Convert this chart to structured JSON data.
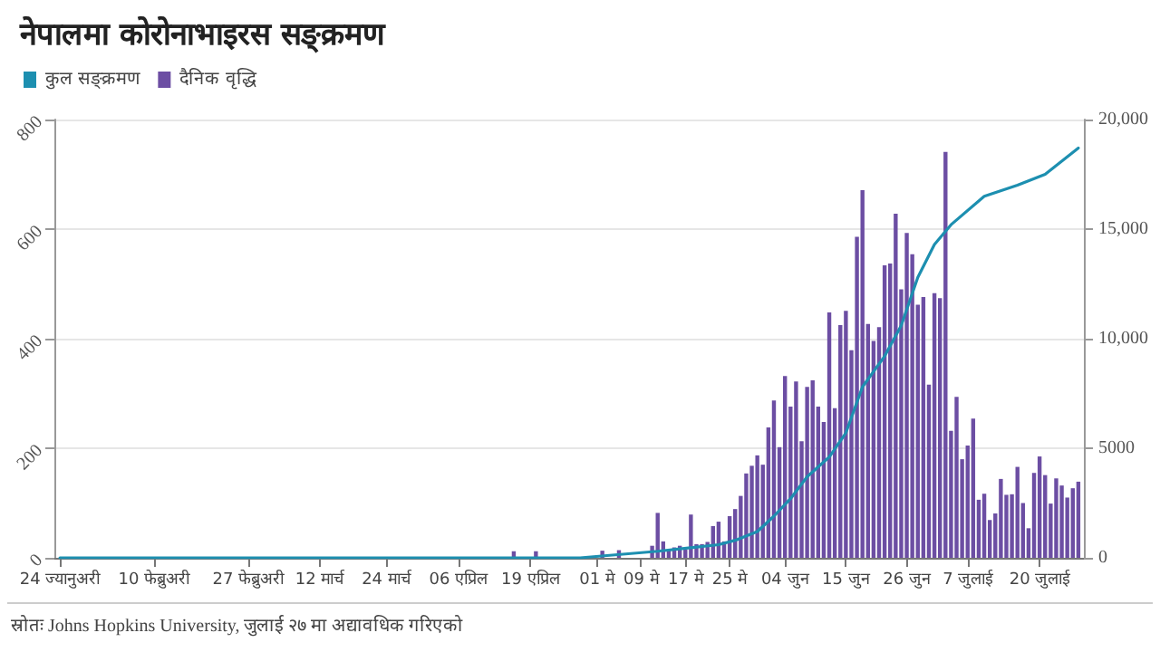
{
  "chart_data": {
    "type": "bar",
    "title": "नेपालमा कोरोनाभाइरस सङ्क्रमण",
    "annotations": [
      "स्रोतः Johns Hopkins University, जुलाई २७ मा अद्यावधिक गरिएको"
    ],
    "legend": "top left",
    "grid": "y",
    "marker": "none",
    "line_style": "solid",
    "xlim": [
      "--01-23",
      "--07-28"
    ],
    "xticks": [
      {
        "value": "--01-24",
        "label": "24 ज्यानुअरी"
      },
      {
        "value": "--02-10",
        "label": "10 फेब्रुअरी"
      },
      {
        "value": "--02-27",
        "label": "27 फेब्रुअरी"
      },
      {
        "value": "--03-12",
        "label": "12 मार्च"
      },
      {
        "value": "--03-24",
        "label": "24 मार्च"
      },
      {
        "value": "--04-06",
        "label": "06 एप्रिल"
      },
      {
        "value": "--04-19",
        "label": "19 एप्रिल"
      },
      {
        "value": "--05-01",
        "label": "01 मे"
      },
      {
        "value": "--05-09",
        "label": "09 मे"
      },
      {
        "value": "--05-17",
        "label": "17 मे"
      },
      {
        "value": "--05-25",
        "label": "25 मे"
      },
      {
        "value": "--06-04",
        "label": "04 जुन"
      },
      {
        "value": "--06-15",
        "label": "15 जुन"
      },
      {
        "value": "--06-26",
        "label": "26 जुन"
      },
      {
        "value": "--07-07",
        "label": "7 जुलाई"
      },
      {
        "value": "--07-20",
        "label": "20 जुलाई"
      }
    ],
    "ylim": [
      0,
      800
    ],
    "yticks": [
      0,
      200,
      400,
      600,
      800
    ],
    "y2lim": [
      0,
      20000
    ],
    "y2ticks": [
      0,
      {
        "value": 5000,
        "label": "5000"
      },
      {
        "value": 10000,
        "label": "10,000"
      },
      {
        "value": 15000,
        "label": "15,000"
      },
      {
        "value": 20000,
        "label": "20,000"
      }
    ],
    "series": [
      {
        "name": "कुल सङ्क्रमण",
        "type": "line",
        "axis": "y2",
        "color": "#1d8fb0",
        "x": [
          "--01-24",
          "--03-24",
          "--04-13",
          "--04-28",
          "--05-12",
          "--05-23",
          "--05-26",
          "--05-30",
          "--06-02",
          "--06-05",
          "--06-08",
          "--06-12",
          "--06-15",
          "--06-18",
          "--06-22",
          "--06-25",
          "--06-28",
          "--07-01",
          "--07-04",
          "--07-10",
          "--07-16",
          "--07-21",
          "--07-27"
        ],
        "values": [
          0,
          0,
          0,
          0,
          300,
          600,
          800,
          1200,
          1900,
          2700,
          3700,
          4600,
          5700,
          7800,
          9200,
          10600,
          12800,
          14300,
          15200,
          16500,
          17000,
          17500,
          18700
        ]
      },
      {
        "name": "दैनिक वृद्धि",
        "color": "#6c4ea3",
        "x": [
          "--04-16",
          "--04-17",
          "--04-18",
          "--04-19",
          "--04-20",
          "--04-21",
          "--04-22",
          "--04-23",
          "--04-24",
          "--04-25",
          "--04-26",
          "--04-27",
          "--04-28",
          "--04-29",
          "--04-30",
          "--05-01",
          "--05-02",
          "--05-03",
          "--05-04",
          "--05-05",
          "--05-06",
          "--05-07",
          "--05-08",
          "--05-09",
          "--05-10",
          "--05-11",
          "--05-12",
          "--05-13",
          "--05-14",
          "--05-15",
          "--05-16",
          "--05-17",
          "--05-18",
          "--05-19",
          "--05-20",
          "--05-21",
          "--05-22",
          "--05-23",
          "--05-24",
          "--05-25",
          "--05-26",
          "--05-27",
          "--05-28",
          "--05-29",
          "--05-30",
          "--05-31",
          "--06-01",
          "--06-02",
          "--06-03",
          "--06-04",
          "--06-05",
          "--06-06",
          "--06-07",
          "--06-08",
          "--06-09",
          "--06-10",
          "--06-11",
          "--06-12",
          "--06-13",
          "--06-14",
          "--06-15",
          "--06-16",
          "--06-17",
          "--06-18",
          "--06-19",
          "--06-20",
          "--06-21",
          "--06-22",
          "--06-23",
          "--06-24",
          "--06-25",
          "--06-26",
          "--06-27",
          "--06-28",
          "--06-29",
          "--06-30",
          "--07-01",
          "--07-02",
          "--07-03",
          "--07-04",
          "--07-05",
          "--07-06",
          "--07-07",
          "--07-08",
          "--07-09",
          "--07-10",
          "--07-11",
          "--07-12",
          "--07-13",
          "--07-14",
          "--07-15",
          "--07-16",
          "--07-17",
          "--07-18",
          "--07-19",
          "--07-20",
          "--07-21",
          "--07-22",
          "--07-23",
          "--07-24",
          "--07-25",
          "--07-26",
          "--07-27"
        ],
        "values": [
          12,
          0,
          0,
          0,
          12,
          0,
          0,
          0,
          0,
          0,
          0,
          0,
          0,
          0,
          0,
          0,
          13,
          0,
          0,
          14,
          0,
          0,
          0,
          0,
          0,
          22,
          82,
          30,
          15,
          19,
          22,
          15,
          79,
          25,
          25,
          29,
          58,
          66,
          30,
          76,
          89,
          113,
          154,
          168,
          187,
          170,
          238,
          287,
          202,
          332,
          276,
          322,
          213,
          312,
          324,
          276,
          248,
          448,
          273,
          425,
          451,
          379,
          586,
          671,
          427,
          396,
          421,
          534,
          537,
          628,
          490,
          593,
          554,
          462,
          476,
          316,
          483,
          474,
          741,
          232,
          294,
          180,
          205,
          254,
          106,
          117,
          69,
          81,
          144,
          115,
          116,
          166,
          100,
          54,
          155,
          185,
          151,
          99,
          145,
          132,
          110,
          127,
          139
        ]
      }
    ]
  }
}
